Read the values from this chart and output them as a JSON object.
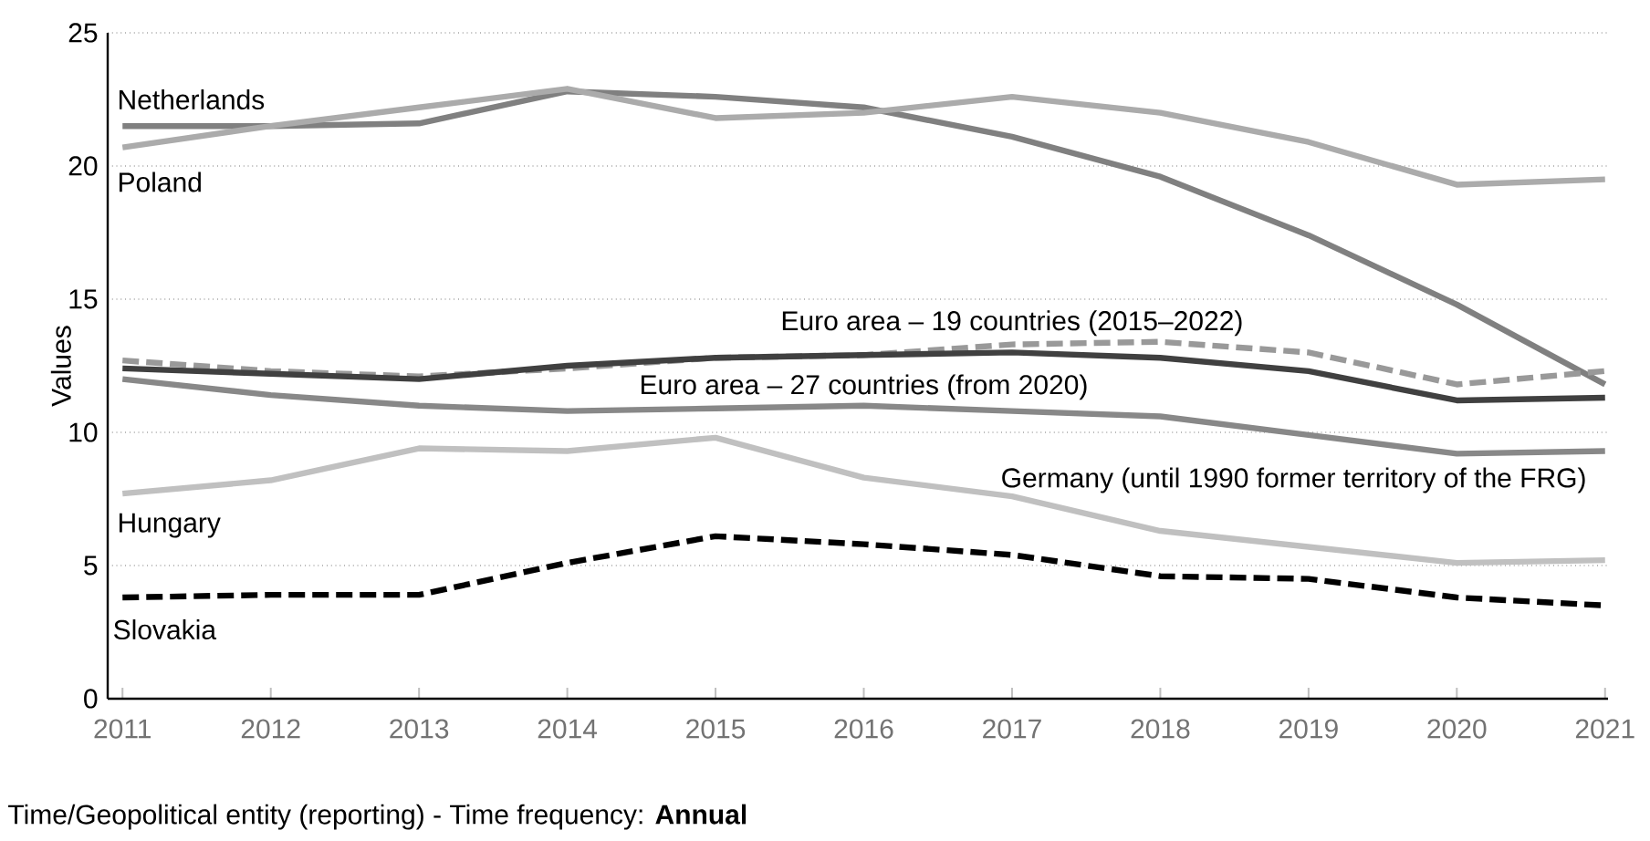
{
  "chart_data": {
    "type": "line",
    "ylabel": "Values",
    "x": [
      2011,
      2012,
      2013,
      2014,
      2015,
      2016,
      2017,
      2018,
      2019,
      2020,
      2021
    ],
    "xlim": [
      2010.9,
      2021.02
    ],
    "ylim": [
      0,
      25
    ],
    "xticks": [
      2011,
      2012,
      2013,
      2014,
      2015,
      2016,
      2017,
      2018,
      2019,
      2020,
      2021
    ],
    "yticks": [
      0,
      5,
      10,
      15,
      20,
      25
    ],
    "grid": "y",
    "marker": "none",
    "series": [
      {
        "name": "Netherlands",
        "color": "#808080",
        "line_style": "solid",
        "values": [
          21.5,
          21.5,
          21.6,
          22.8,
          22.6,
          22.2,
          21.1,
          19.6,
          17.4,
          14.8,
          11.8
        ]
      },
      {
        "name": "Poland",
        "color": "#ababab",
        "line_style": "solid",
        "values": [
          20.7,
          21.5,
          22.2,
          22.9,
          21.8,
          22.0,
          22.6,
          22.0,
          20.9,
          19.3,
          19.5
        ]
      },
      {
        "name": "Euro area – 19 countries (2015–2022)",
        "color": "#999999",
        "line_style": "dashed",
        "values": [
          12.7,
          12.3,
          12.1,
          12.4,
          12.8,
          12.9,
          13.3,
          13.4,
          13.0,
          11.8,
          12.3
        ]
      },
      {
        "name": "Euro area – 27 countries (from 2020)",
        "color": "#404040",
        "line_style": "solid",
        "values": [
          12.4,
          12.2,
          12.0,
          12.5,
          12.8,
          12.9,
          13.0,
          12.8,
          12.3,
          11.2,
          11.3
        ]
      },
      {
        "name": "Germany (until 1990 former territory of the FRG)",
        "color": "#888888",
        "line_style": "solid",
        "values": [
          12.0,
          11.4,
          11.0,
          10.8,
          10.9,
          11.0,
          10.8,
          10.6,
          9.9,
          9.2,
          9.3
        ]
      },
      {
        "name": "Hungary",
        "color": "#c0c0c0",
        "line_style": "solid",
        "values": [
          7.7,
          8.2,
          9.4,
          9.3,
          9.8,
          8.3,
          7.6,
          6.3,
          5.7,
          5.1,
          5.2
        ]
      },
      {
        "name": "Slovakia",
        "color": "#000000",
        "line_style": "dashed",
        "values": [
          3.8,
          3.9,
          3.9,
          5.1,
          6.1,
          5.8,
          5.4,
          4.6,
          4.5,
          3.8,
          3.5
        ]
      }
    ],
    "annotations": [
      "Time/Geopolitical entity (reporting) - Time frequency: **Annual**"
    ]
  }
}
